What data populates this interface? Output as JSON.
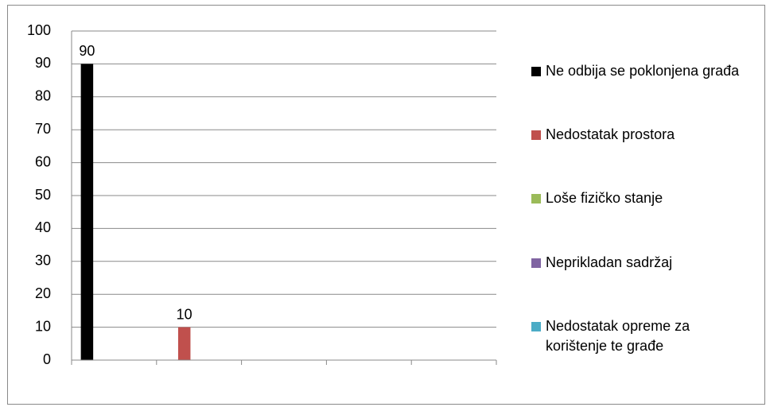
{
  "chart_data": {
    "type": "bar",
    "categories": [
      null,
      null,
      null,
      null,
      null
    ],
    "series": [
      {
        "name": "Ne odbija se poklonjena građa",
        "color": "#000000",
        "values": [
          90,
          null,
          null,
          null,
          null
        ]
      },
      {
        "name": "Nedostatak prostora",
        "color": "#c0504d",
        "values": [
          null,
          10,
          null,
          null,
          null
        ]
      },
      {
        "name": "Loše fizičko stanje",
        "color": "#9bbb59",
        "values": [
          null,
          null,
          null,
          null,
          null
        ]
      },
      {
        "name": "Neprikladan sadržaj",
        "color": "#8064a2",
        "values": [
          null,
          null,
          null,
          null,
          null
        ]
      },
      {
        "name": "Nedostatak opreme za korištenje te građe",
        "color": "#4bacc6",
        "values": [
          null,
          null,
          null,
          null,
          null
        ]
      }
    ],
    "ylim": [
      0,
      100
    ],
    "yticks": [
      0,
      10,
      20,
      30,
      40,
      50,
      60,
      70,
      80,
      90,
      100
    ],
    "grid": true,
    "legend": "right"
  }
}
